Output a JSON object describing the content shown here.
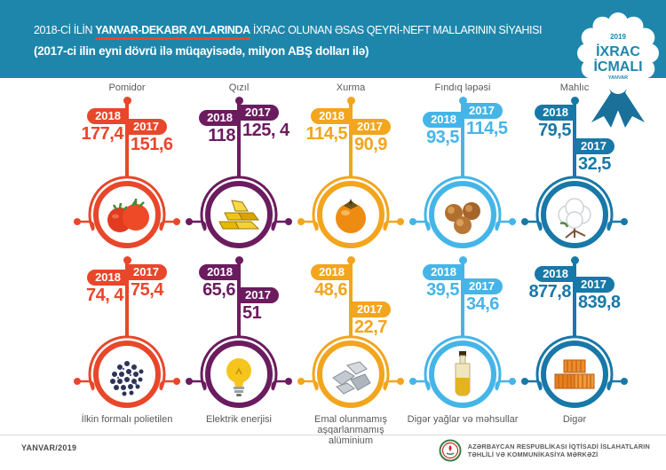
{
  "header": {
    "title_prefix": "2018-Cİ İLİN ",
    "title_highlight": "YANVAR-DEKABR AYLARINDA",
    "title_suffix": " İXRAC OLUNAN ƏSAS QEYRİ-NEFT MALLARININ SİYAHISI",
    "subtitle": "(2017-ci ilin eyni dövrü ilə müqayisədə, milyon ABŞ dolları ilə)",
    "badge": {
      "year": "2019",
      "line1": "İXRAC",
      "line2": "İCMALI",
      "bottom": "YANVAR"
    }
  },
  "years": {
    "y2018": "2018",
    "y2017": "2017"
  },
  "products": [
    {
      "name": "Pomidor",
      "icon": "tomato-icon",
      "color": "red",
      "v2018": "177,4",
      "v2017": "151,6",
      "off2018": 14,
      "off2017": 26
    },
    {
      "name": "Qızıl",
      "icon": "gold-bars-icon",
      "color": "purple",
      "v2018": "118",
      "v2017": "125, 4",
      "off2018": 16,
      "off2017": 10
    },
    {
      "name": "Xurma",
      "icon": "persimmon-icon",
      "color": "orange",
      "v2018": "114,5",
      "v2017": "90,9",
      "off2018": 14,
      "off2017": 26
    },
    {
      "name": "Fındıq ləpəsi",
      "icon": "hazelnut-icon",
      "color": "light_blue",
      "v2018": "93,5",
      "v2017": "114,5",
      "off2018": 18,
      "off2017": 8
    },
    {
      "name": "Mahlıc",
      "icon": "cotton-icon",
      "color": "dark_blue",
      "v2018": "79,5",
      "v2017": "32,5",
      "off2018": 10,
      "off2017": 48
    },
    {
      "name": "İlkin formalı polietilen",
      "icon": "polyethylene-icon",
      "color": "red",
      "v2018": "74, 4",
      "v2017": "75,4",
      "off2018": 16,
      "off2017": 10
    },
    {
      "name": "Elektrik enerjisi",
      "icon": "light-bulb-icon",
      "color": "purple",
      "v2018": "65,6",
      "v2017": "51",
      "off2018": 10,
      "off2017": 36
    },
    {
      "name": "Emal olunmamış aşqarlanmamış alüminium",
      "icon": "aluminum-icon",
      "color": "orange",
      "v2018": "48,6",
      "v2017": "22,7",
      "off2018": 10,
      "off2017": 52
    },
    {
      "name": "Digər yağlar və məhsullar",
      "icon": "oil-bottle-icon",
      "color": "light_blue",
      "v2018": "39,5",
      "v2017": "34,6",
      "off2018": 10,
      "off2017": 26
    },
    {
      "name": "Digər",
      "icon": "containers-icon",
      "color": "dark_blue",
      "v2018": "877,8",
      "v2017": "839,8",
      "off2018": 12,
      "off2017": 24
    }
  ],
  "colors": {
    "red": "#e8472b",
    "purple": "#6b1c5f",
    "orange": "#f2a51d",
    "light_blue": "#45b5e8",
    "dark_blue": "#1878a7",
    "header_blue": "#1e86ab",
    "ribbon_blue": "#19719a",
    "label_gray": "#58595b"
  },
  "footer": {
    "issue": "YANVAR/2019",
    "org_line1": "AZƏRBAYCAN RESPUBLİKASI İQTİSADİ İSLAHATLARIN",
    "org_line2": "TƏHLİLİ VƏ KOMMUNİKASİYA MƏRKƏZİ"
  },
  "chart_data": {
    "type": "bar",
    "title": "2018-Cİ İLİN YANVAR-DEKABR AYLARINDA İXRAC OLUNAN ƏSAS QEYRİ-NEFT MALLARININ SİYAHISI",
    "subtitle": "(2017-ci ilin eyni dövrü ilə müqayisədə, milyon ABŞ dolları ilə)",
    "unit": "milyon ABŞ dolları",
    "categories": [
      "Pomidor",
      "Qızıl",
      "Xurma",
      "Fındıq ləpəsi",
      "Mahlıc",
      "İlkin formalı polietilen",
      "Elektrik enerjisi",
      "Emal olunmamış aşqarlanmamış alüminium",
      "Digər yağlar və məhsullar",
      "Digər"
    ],
    "series": [
      {
        "name": "2018",
        "values": [
          177.4,
          118,
          114.5,
          93.5,
          79.5,
          74.4,
          65.6,
          48.6,
          39.5,
          877.8
        ]
      },
      {
        "name": "2017",
        "values": [
          151.6,
          125.4,
          90.9,
          114.5,
          32.5,
          75.4,
          51,
          22.7,
          34.6,
          839.8
        ]
      }
    ],
    "legend_position": "per-item flags",
    "grid": false
  }
}
